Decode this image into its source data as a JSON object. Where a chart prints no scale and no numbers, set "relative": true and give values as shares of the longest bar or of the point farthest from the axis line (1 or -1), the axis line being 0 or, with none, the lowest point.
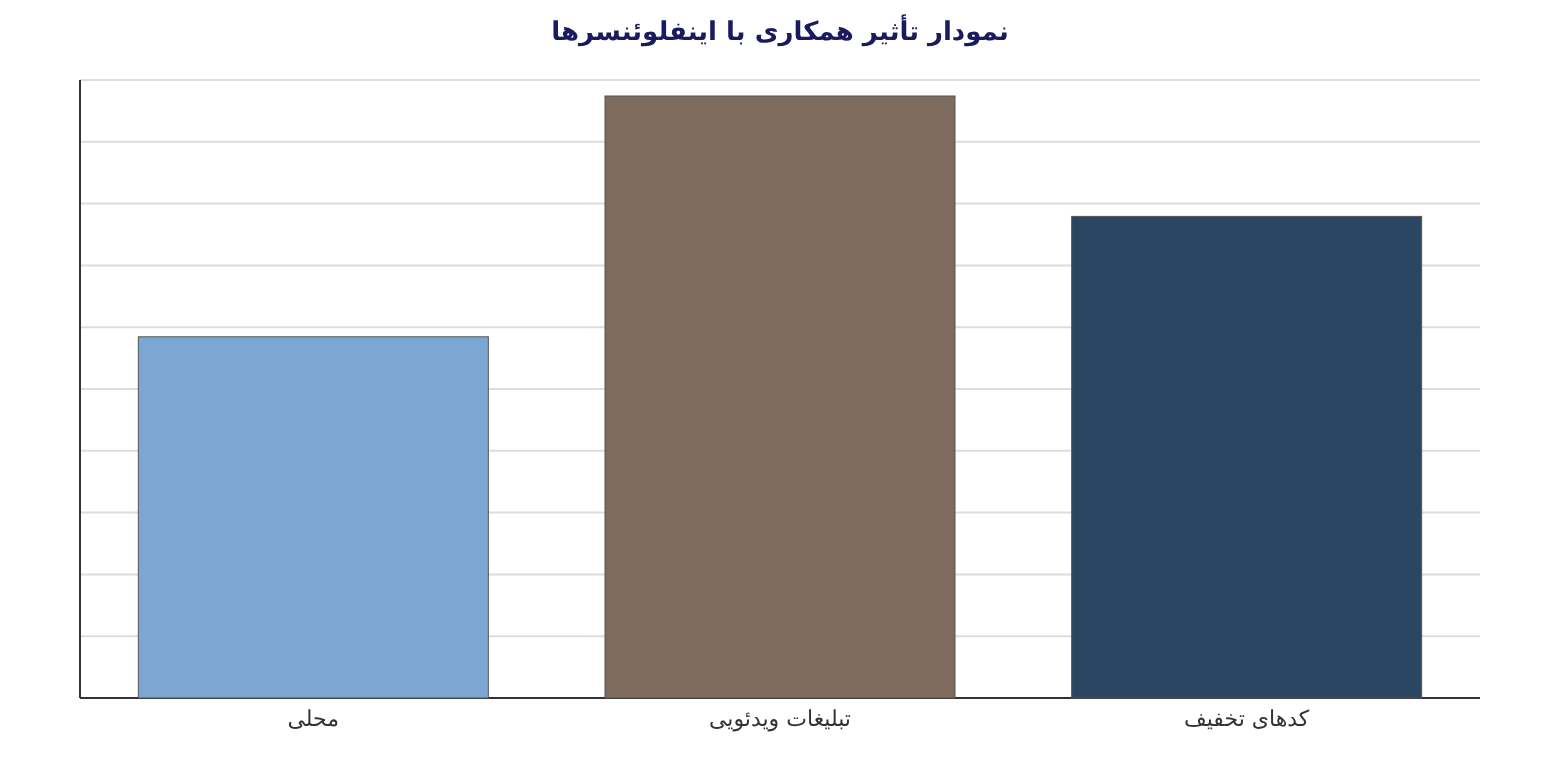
{
  "chart_data": {
    "type": "bar",
    "title": "نمودار تأثیر همکاری با اینفلوئنسرها",
    "categories": [
      "محلی",
      "تبلیغات ویدئویی",
      "کدهای تخفیف"
    ],
    "values": [
      0.6,
      1,
      0.8
    ],
    "colors": [
      "#7ba7d2",
      "#7f6a5e",
      "#2b4663"
    ],
    "relative": true,
    "grid": true
  }
}
